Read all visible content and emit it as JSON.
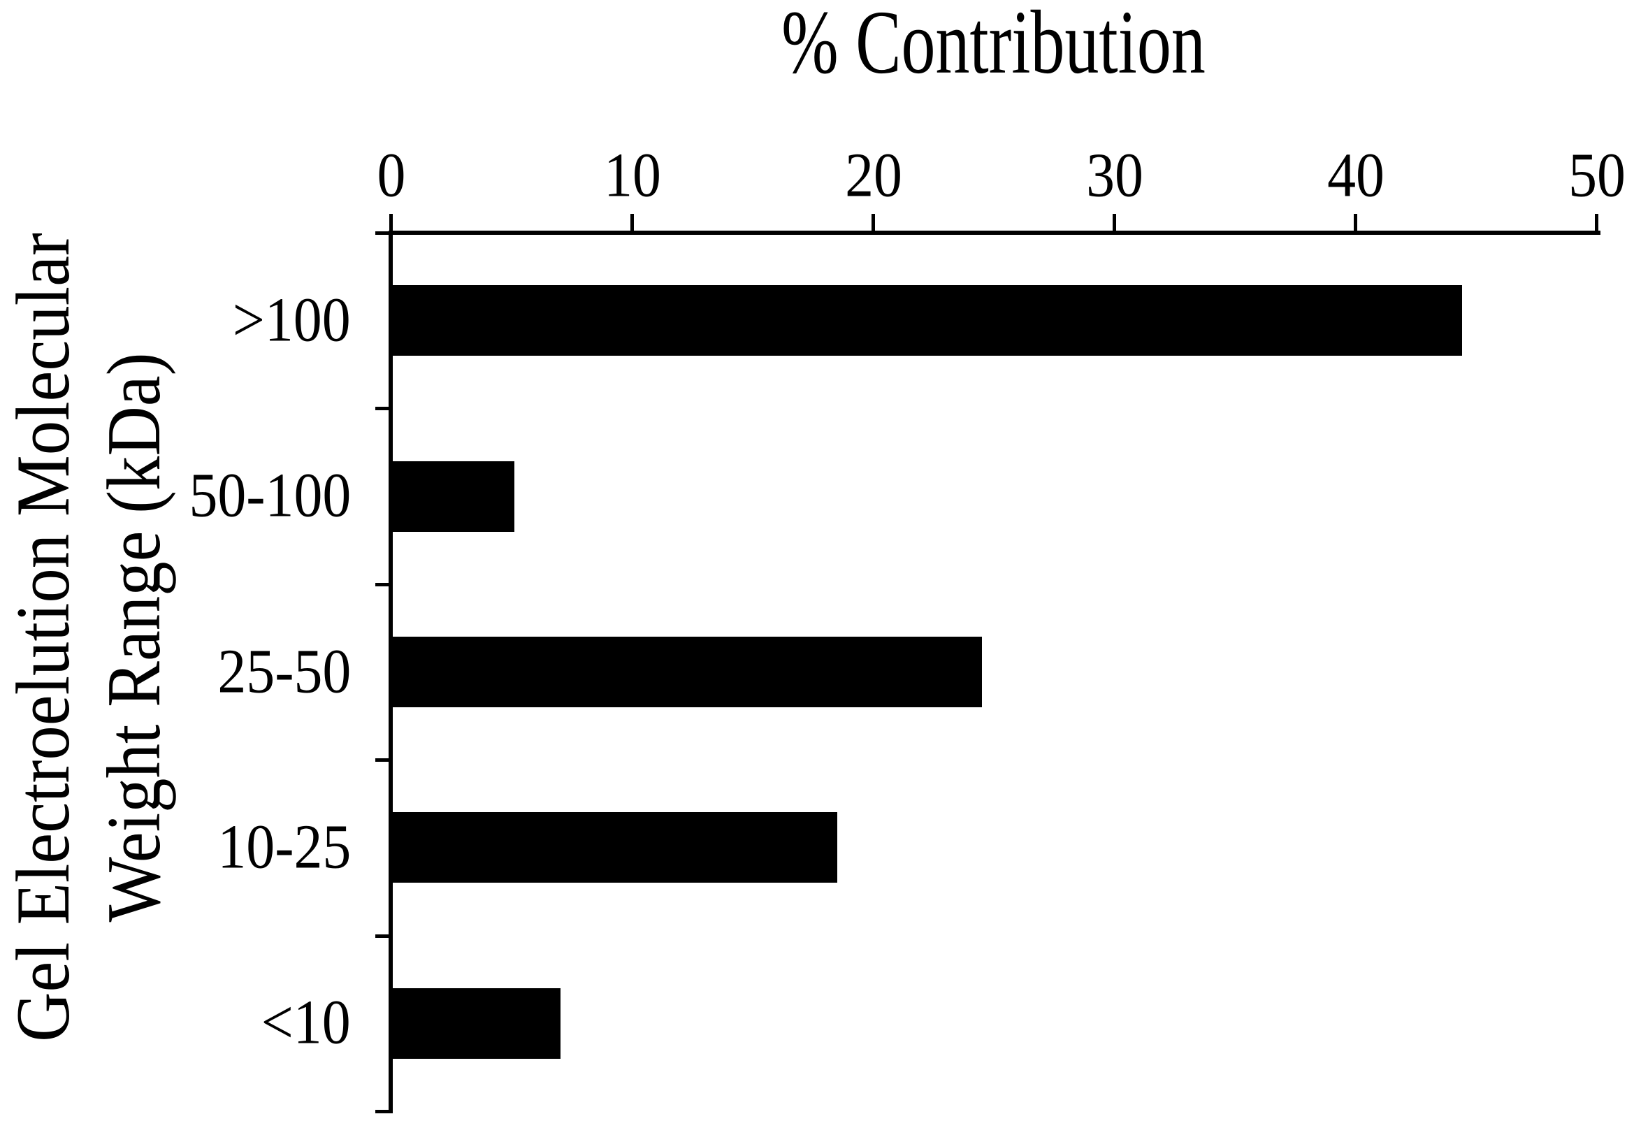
{
  "figure": {
    "title": "% Contribution",
    "y_axis_label_line1": "Gel Electroelution Molecular",
    "y_axis_label_line2": "Weight Range (kDa)"
  },
  "chart_data": {
    "type": "bar",
    "orientation": "horizontal",
    "title": "% Contribution",
    "xlabel": "% Contribution",
    "ylabel": "Gel Electroelution Molecular Weight Range (kDa)",
    "categories": [
      ">100",
      "50-100",
      "25-50",
      "10-25",
      "<10"
    ],
    "values": [
      44.4,
      5.1,
      24.5,
      18.5,
      7.0
    ],
    "series": [
      {
        "name": "% Contribution",
        "values": [
          44.4,
          5.1,
          24.5,
          18.5,
          7.0
        ]
      }
    ],
    "xlim": [
      0,
      50
    ],
    "x_ticks": [
      0,
      10,
      20,
      30,
      40,
      50
    ],
    "grid": false,
    "legend_position": "none",
    "bar_color": "#000000",
    "axis_color": "#000000",
    "background_color": "#ffffff"
  }
}
